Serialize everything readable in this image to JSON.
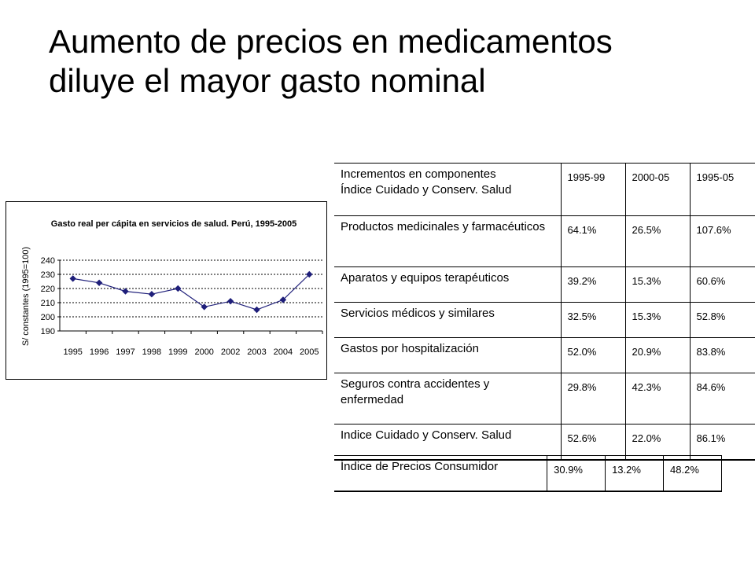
{
  "slide": {
    "title_line1": "Aumento de precios en medicamentos",
    "title_line2": "diluye el mayor gasto nominal"
  },
  "chart_data": {
    "type": "line",
    "title": "Gasto real per cápita en servicios de salud. Perú, 1995-2005",
    "ylabel": "S/ constantes (1995=100)",
    "xlabel": "",
    "categories": [
      "1995",
      "1996",
      "1997",
      "1998",
      "1999",
      "2000",
      "2002",
      "2003",
      "2004",
      "2005"
    ],
    "values": [
      227,
      224,
      218,
      216,
      220,
      207,
      211,
      205,
      212,
      230
    ],
    "ylim": [
      190,
      240
    ],
    "yticks": [
      "190",
      "200",
      "210",
      "220",
      "230",
      "240"
    ],
    "grid": true,
    "series_color": "#1f1f7a"
  },
  "table": {
    "header": {
      "label_line1": "Incrementos en componentes",
      "label_line2": "Índice Cuidado y Conserv. Salud",
      "cols": [
        "1995-99",
        "2000-05",
        "1995-05"
      ]
    },
    "rows": [
      {
        "label": "Productos medicinales y farmacéuticos",
        "values": [
          "64.1%",
          "26.5%",
          "107.6%"
        ]
      },
      {
        "label": "Aparatos y equipos terapéuticos",
        "values": [
          "39.2%",
          "15.3%",
          "60.6%"
        ]
      },
      {
        "label": "Servicios médicos y similares",
        "values": [
          "32.5%",
          "15.3%",
          "52.8%"
        ]
      },
      {
        "label": "Gastos por hospitalización",
        "values": [
          "52.0%",
          "20.9%",
          "83.8%"
        ]
      },
      {
        "label": "Seguros contra accidentes y enfermedad",
        "values": [
          "29.8%",
          "42.3%",
          "84.6%"
        ]
      },
      {
        "label": "Indice Cuidado y Conserv. Salud",
        "values": [
          "52.6%",
          "22.0%",
          "86.1%"
        ]
      }
    ]
  },
  "ipc": {
    "label": "Índice de Precios Consumidor",
    "values": [
      "30.9%",
      "13.2%",
      "48.2%"
    ]
  }
}
